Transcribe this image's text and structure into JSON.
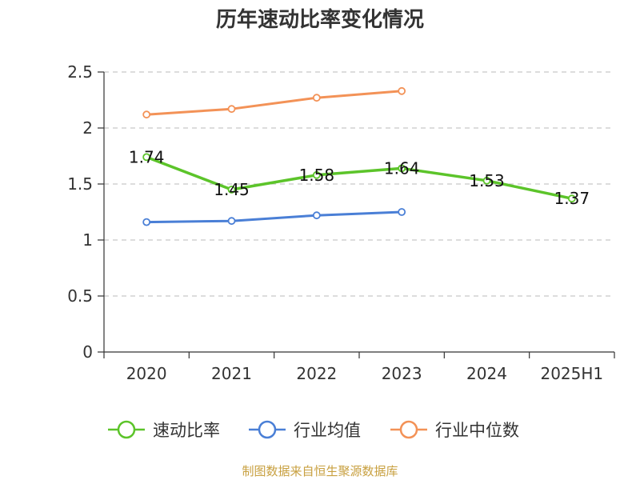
{
  "chart_data": {
    "type": "line",
    "title": "历年速动比率变化情况",
    "xlabel": "",
    "ylabel": "",
    "categories": [
      "2020",
      "2021",
      "2022",
      "2023",
      "2024",
      "2025H1"
    ],
    "ylim": [
      0,
      2.5
    ],
    "yticks": [
      0,
      0.5,
      1,
      1.5,
      2,
      2.5
    ],
    "ytick_labels": [
      "0",
      "0.5",
      "1",
      "1.5",
      "2",
      "2.5"
    ],
    "grid": true,
    "legend_position": "bottom",
    "series": [
      {
        "name": "速动比率",
        "color": "#5cc42a",
        "values": [
          1.74,
          1.45,
          1.58,
          1.64,
          1.53,
          1.37
        ],
        "labels": [
          "1.74",
          "1.45",
          "1.58",
          "1.64",
          "1.53",
          "1.37"
        ]
      },
      {
        "name": "行业均值",
        "color": "#4a7fd6",
        "values": [
          1.16,
          1.17,
          1.22,
          1.25,
          null,
          null
        ]
      },
      {
        "name": "行业中位数",
        "color": "#f39257",
        "values": [
          2.12,
          2.17,
          2.27,
          2.33,
          null,
          null
        ]
      }
    ],
    "source": "制图数据来自恒生聚源数据库"
  }
}
